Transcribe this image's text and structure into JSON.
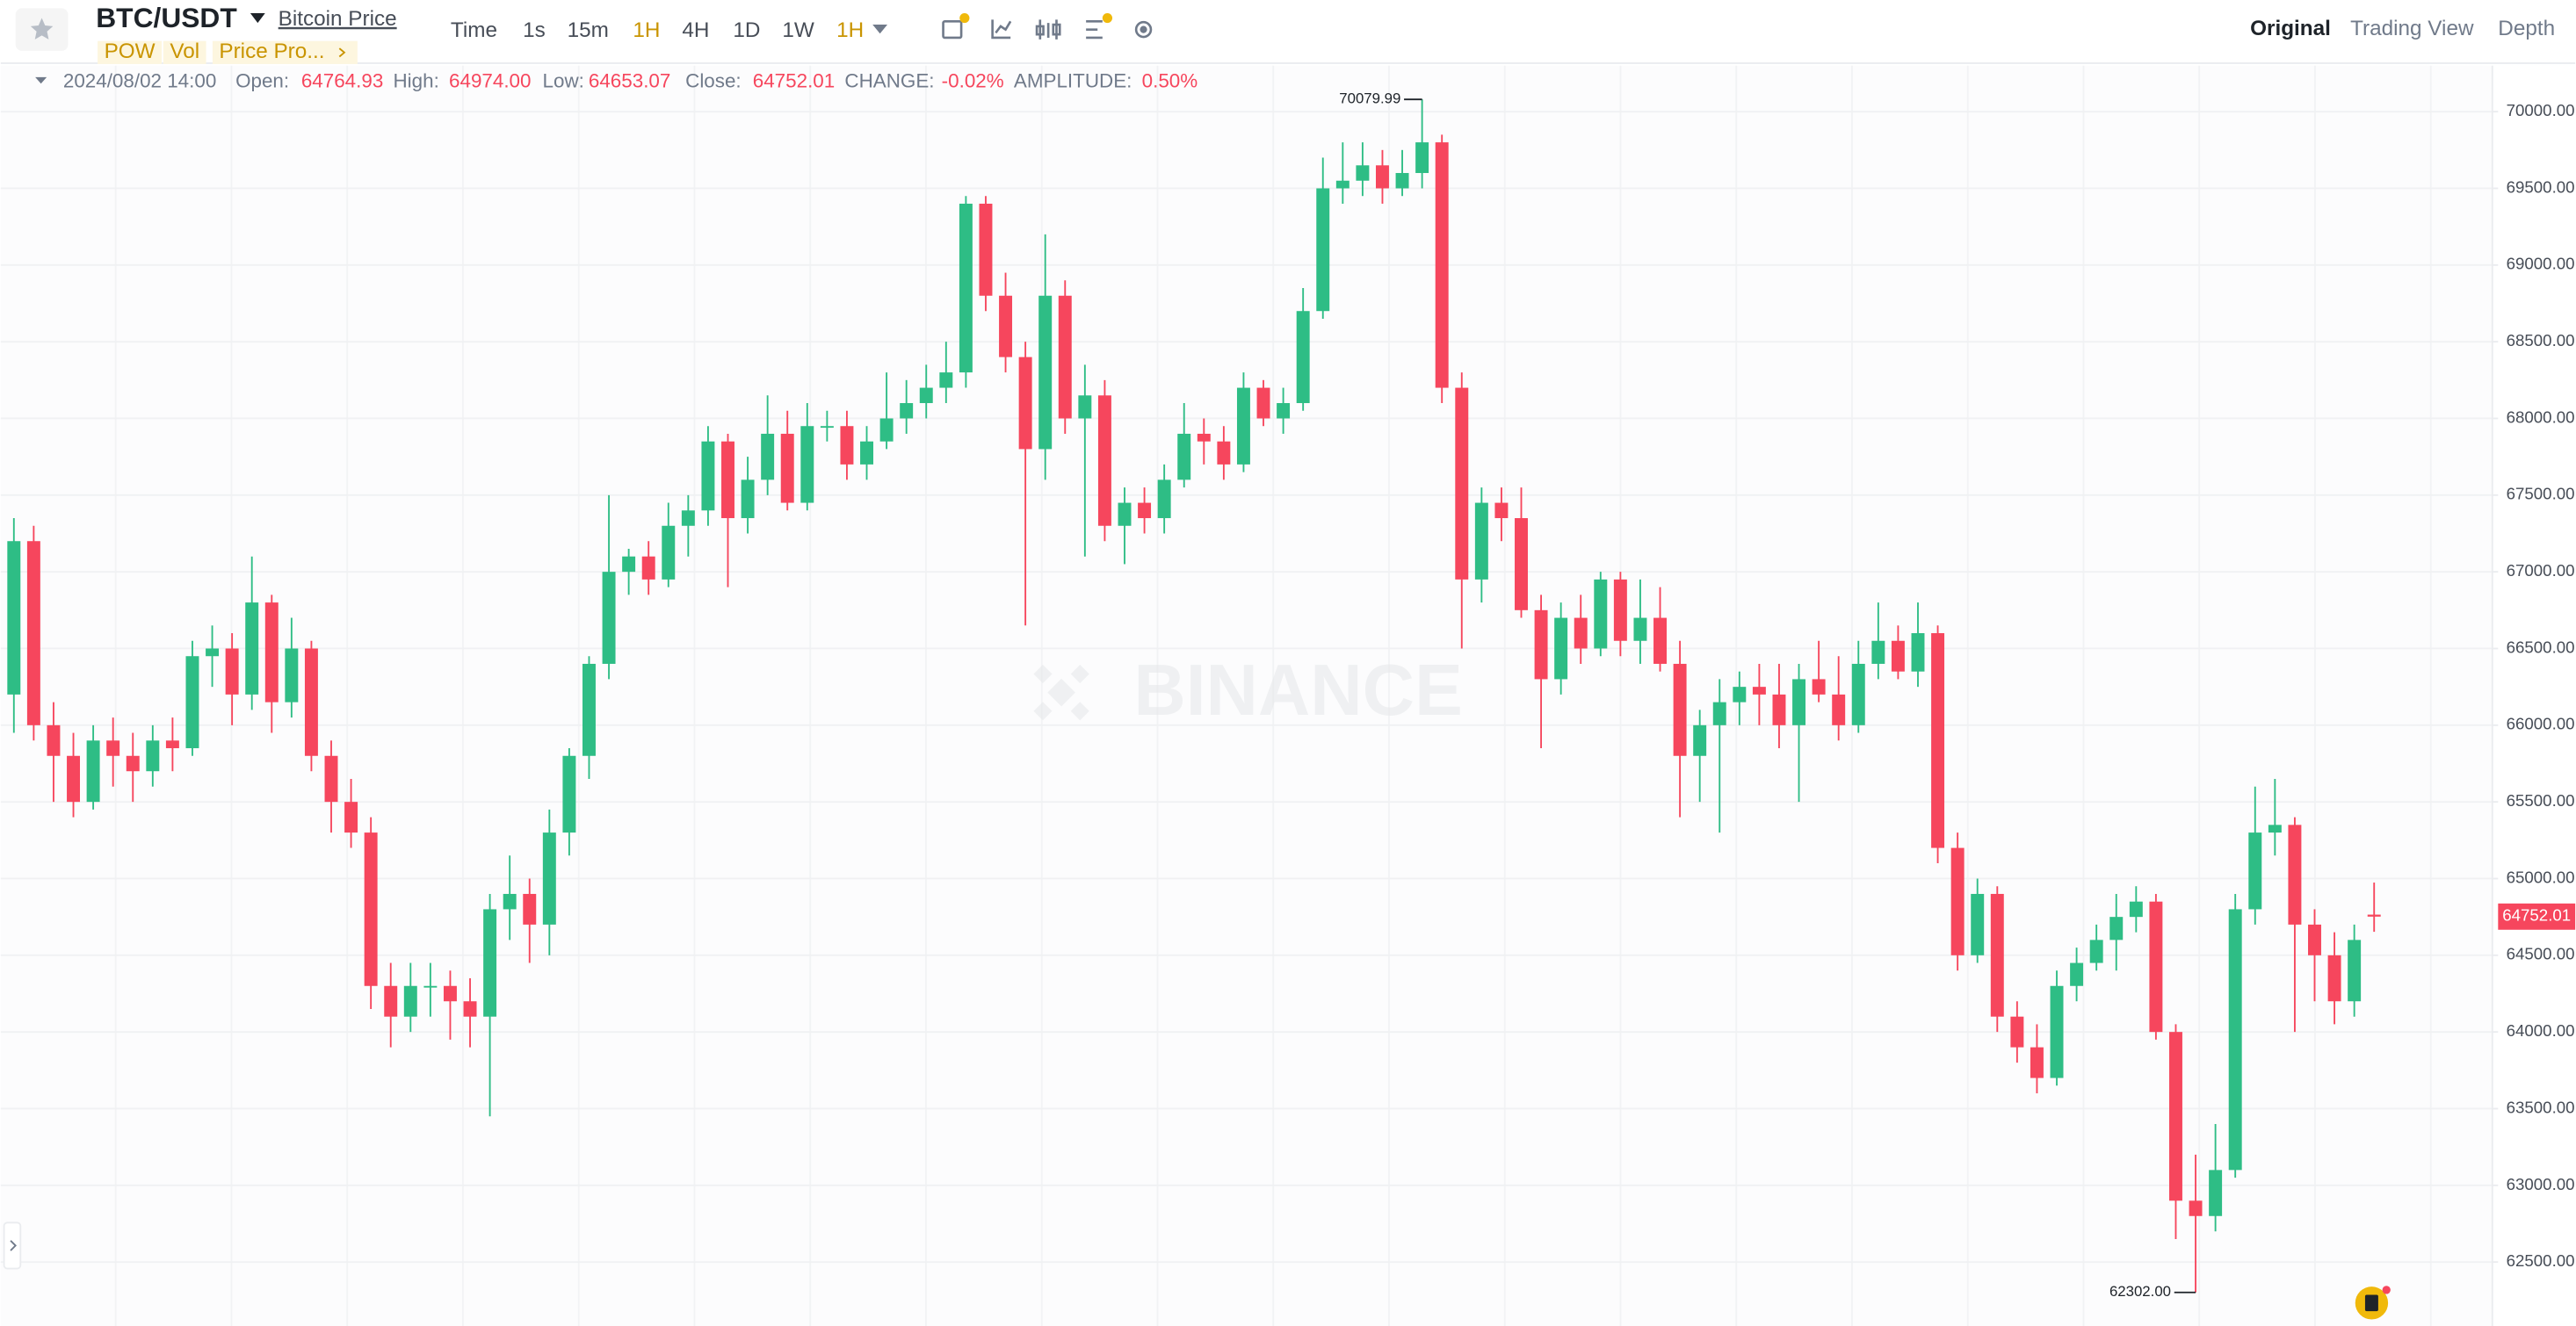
{
  "header": {
    "symbol": "BTC/USDT",
    "link": "Bitcoin Price",
    "tags": [
      "POW",
      "Vol",
      "Price Pro..."
    ],
    "intervals": [
      "Time",
      "1s",
      "15m",
      "1H",
      "4H",
      "1D",
      "1W",
      "1H"
    ],
    "tabs": [
      "Original",
      "Trading View",
      "Depth"
    ]
  },
  "info_bar": {
    "date": "2024/08/02 14:00",
    "fields": [
      {
        "label": "Open:",
        "value": "64764.93"
      },
      {
        "label": "High:",
        "value": "64974.00"
      },
      {
        "label": "Low:",
        "value": "64653.07"
      },
      {
        "label": "Close:",
        "value": "64752.01"
      },
      {
        "label": "CHANGE:",
        "value": "-0.02%"
      },
      {
        "label": "AMPLITUDE:",
        "value": "0.50%"
      }
    ]
  },
  "watermark": "BINANCE",
  "chart_data": {
    "type": "candlestick",
    "up_color": "#2ebd85",
    "down_color": "#f6465d",
    "grid": true,
    "ylim": [
      62083,
      70300
    ],
    "yticks": [
      {
        "value": 62500,
        "label": "62500.00"
      },
      {
        "value": 63000,
        "label": "63000.00"
      },
      {
        "value": 63500,
        "label": "63500.00"
      },
      {
        "value": 64000,
        "label": "64000.00"
      },
      {
        "value": 64500,
        "label": "64500.00"
      },
      {
        "value": 65000,
        "label": "65000.00"
      },
      {
        "value": 65500,
        "label": "65500.00"
      },
      {
        "value": 66000,
        "label": "66000.00"
      },
      {
        "value": 66500,
        "label": "66500.00"
      },
      {
        "value": 67000,
        "label": "67000.00"
      },
      {
        "value": 67500,
        "label": "67500.00"
      },
      {
        "value": 68000,
        "label": "68000.00"
      },
      {
        "value": 68500,
        "label": "68500.00"
      },
      {
        "value": 69000,
        "label": "69000.00"
      },
      {
        "value": 69500,
        "label": "69500.00"
      },
      {
        "value": 70000,
        "label": "70000.00"
      }
    ],
    "open": [
      66200,
      67200,
      66000,
      65800,
      65500,
      65900,
      65800,
      65700,
      65900,
      65850,
      66450,
      66500,
      66200,
      66800,
      66150,
      66500,
      65800,
      65500,
      65300,
      64300,
      64100,
      64300,
      64300,
      64200,
      64100,
      64800,
      64900,
      64700,
      65300,
      65800,
      66400,
      67000,
      67100,
      66950,
      67300,
      67400,
      67850,
      67350,
      67600,
      67900,
      67450,
      67950,
      67950,
      67700,
      67850,
      68000,
      68100,
      68200,
      68300,
      69400,
      68800,
      68400,
      67800,
      68800,
      68000,
      68150,
      67300,
      67450,
      67350,
      67600,
      67900,
      67850,
      67700,
      68200,
      68000,
      68100,
      68700,
      69500,
      69550,
      69650,
      69500,
      69600,
      69800,
      68200,
      66950,
      67450,
      67350,
      66750,
      66300,
      66700,
      66500,
      66950,
      66550,
      66700,
      66400,
      65800,
      66000,
      66150,
      66250,
      66200,
      66000,
      66300,
      66200,
      66000,
      66400,
      66550,
      66350,
      66600,
      65200,
      64500,
      64900,
      64100,
      63900,
      63700,
      64300,
      64450,
      64600,
      64750,
      64850,
      64000,
      62900,
      62800,
      63100,
      64800,
      65300,
      65350,
      64700,
      64500,
      64200,
      64764.93
    ],
    "high": [
      67350,
      67300,
      66150,
      65950,
      66000,
      66050,
      65950,
      66000,
      66050,
      66550,
      66650,
      66600,
      67100,
      66850,
      66700,
      66550,
      65900,
      65650,
      65400,
      64450,
      64450,
      64450,
      64400,
      64350,
      64900,
      65150,
      65000,
      65450,
      65850,
      66450,
      67500,
      67150,
      67200,
      67450,
      67500,
      67950,
      67900,
      67750,
      68150,
      68050,
      68100,
      68050,
      68050,
      67950,
      68300,
      68250,
      68350,
      68500,
      69450,
      69450,
      68950,
      68500,
      69200,
      68900,
      68350,
      68250,
      67550,
      67550,
      67700,
      68100,
      68000,
      67950,
      68300,
      68250,
      68200,
      68850,
      69700,
      69800,
      69800,
      69750,
      69750,
      70079.99,
      69850,
      68300,
      67550,
      67550,
      67550,
      66850,
      66800,
      66850,
      67000,
      67000,
      66950,
      66900,
      66550,
      66100,
      66300,
      66350,
      66400,
      66400,
      66400,
      66550,
      66450,
      66550,
      66800,
      66650,
      66800,
      66650,
      65300,
      65000,
      64950,
      64200,
      64050,
      64400,
      64550,
      64700,
      64900,
      64950,
      64900,
      64050,
      63200,
      63400,
      64900,
      65600,
      65650,
      65400,
      64800,
      64650,
      64700,
      64974
    ],
    "low": [
      65950,
      65900,
      65500,
      65400,
      65450,
      65600,
      65500,
      65600,
      65700,
      65800,
      66250,
      66000,
      66100,
      65950,
      66050,
      65700,
      65300,
      65200,
      64150,
      63900,
      64000,
      64100,
      63950,
      63900,
      63450,
      64600,
      64450,
      64500,
      65150,
      65650,
      66300,
      66850,
      66850,
      66900,
      67100,
      67300,
      66900,
      67250,
      67500,
      67400,
      67400,
      67850,
      67600,
      67600,
      67800,
      67900,
      68000,
      68100,
      68200,
      68700,
      68300,
      66650,
      67600,
      67900,
      67100,
      67200,
      67050,
      67250,
      67250,
      67550,
      67700,
      67600,
      67650,
      67950,
      67900,
      68050,
      68650,
      69400,
      69450,
      69400,
      69450,
      69500,
      68100,
      66500,
      66800,
      67200,
      66700,
      65850,
      66200,
      66400,
      66450,
      66450,
      66400,
      66350,
      65400,
      65500,
      65300,
      66000,
      66000,
      65850,
      65500,
      66150,
      65900,
      65950,
      66300,
      66300,
      66250,
      65100,
      64400,
      64450,
      64000,
      63800,
      63600,
      63650,
      64200,
      64400,
      64400,
      64650,
      63950,
      62650,
      62302,
      62700,
      63050,
      64700,
      65150,
      64000,
      64200,
      64050,
      64100,
      64653.07
    ],
    "close": [
      67200,
      66000,
      65800,
      65500,
      65900,
      65800,
      65700,
      65900,
      65850,
      66450,
      66500,
      66200,
      66800,
      66150,
      66500,
      65800,
      65500,
      65300,
      64300,
      64100,
      64300,
      64300,
      64200,
      64100,
      64800,
      64900,
      64700,
      65300,
      65800,
      66400,
      67000,
      67100,
      66950,
      67300,
      67400,
      67850,
      67350,
      67600,
      67900,
      67450,
      67950,
      67950,
      67700,
      67850,
      68000,
      68100,
      68200,
      68300,
      69400,
      68800,
      68400,
      67800,
      68800,
      68000,
      68150,
      67300,
      67450,
      67350,
      67600,
      67900,
      67850,
      67700,
      68200,
      68000,
      68100,
      68700,
      69500,
      69550,
      69650,
      69500,
      69600,
      69800,
      68200,
      66950,
      67450,
      67350,
      66750,
      66300,
      66700,
      66500,
      66950,
      66550,
      66700,
      66400,
      65800,
      66000,
      66150,
      66250,
      66200,
      66000,
      66300,
      66200,
      66000,
      66400,
      66550,
      66350,
      66600,
      65200,
      64500,
      64900,
      64100,
      63900,
      63700,
      64300,
      64450,
      64600,
      64750,
      64850,
      64000,
      62900,
      62800,
      63100,
      64800,
      65300,
      65350,
      64700,
      64500,
      64200,
      64600,
      64752.01
    ],
    "max_label": "70079.99",
    "min_label": "62302.00",
    "last_price_label": "64752.01"
  }
}
